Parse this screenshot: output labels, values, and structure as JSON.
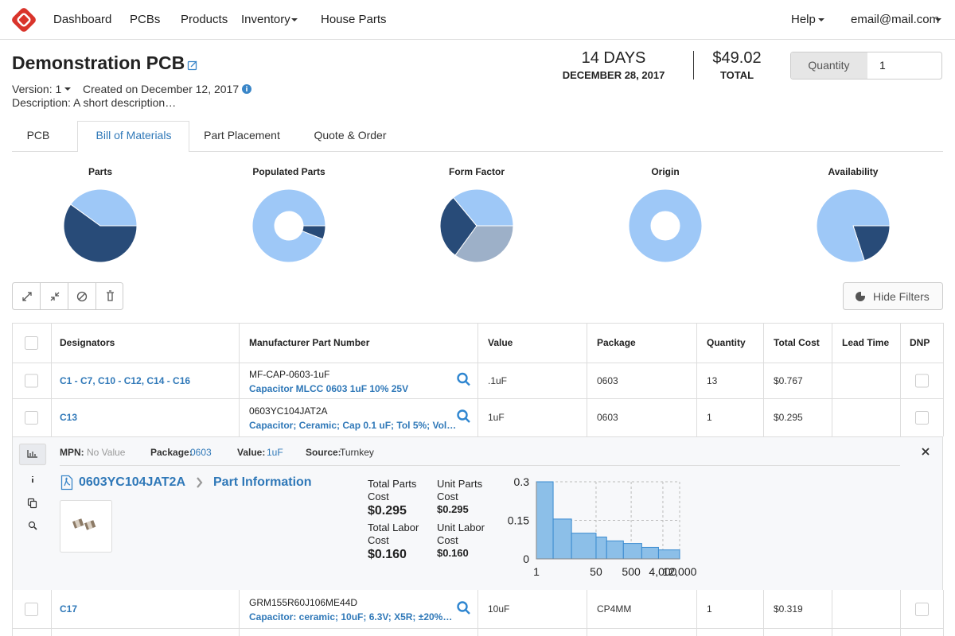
{
  "nav": {
    "items": [
      "Dashboard",
      "PCBs",
      "Products",
      "Inventory",
      "House Parts"
    ],
    "help": "Help",
    "account": "email@mail.com"
  },
  "header": {
    "title": "Demonstration PCB",
    "version": "Version: 1",
    "created": "Created on December 12, 2017",
    "description": "Description: A short description…",
    "lead_time": "14 DAYS",
    "ship_date": "DECEMBER 28, 2017",
    "total": "$49.02",
    "total_label": "TOTAL",
    "quantity_label": "Quantity",
    "quantity": "1"
  },
  "tabs": [
    "PCB",
    "Bill of Materials",
    "Part Placement",
    "Quote & Order"
  ],
  "active_tab": 1,
  "chart_data": [
    {
      "type": "pie",
      "title": "Parts",
      "values": [
        60,
        40
      ],
      "colors": [
        "#284b78",
        "#9ec8f7"
      ],
      "donut": false
    },
    {
      "type": "pie",
      "title": "Populated Parts",
      "values": [
        6,
        94
      ],
      "colors": [
        "#284b78",
        "#9ec8f7"
      ],
      "donut": true
    },
    {
      "type": "pie",
      "title": "Form Factor",
      "values": [
        35,
        29,
        36
      ],
      "colors": [
        "#9db0c8",
        "#284b78",
        "#9ec8f7"
      ],
      "donut": false
    },
    {
      "type": "pie",
      "title": "Origin",
      "values": [
        100
      ],
      "colors": [
        "#9ec8f7"
      ],
      "donut": true
    },
    {
      "type": "pie",
      "title": "Availability",
      "values": [
        20,
        80
      ],
      "colors": [
        "#284b78",
        "#9ec8f7"
      ],
      "donut": false
    },
    {
      "type": "area",
      "step": true,
      "x": [
        1,
        3,
        10,
        50,
        100,
        300,
        1000,
        3000
      ],
      "values": [
        0.3,
        0.155,
        0.1,
        0.085,
        0.07,
        0.06,
        0.045,
        0.035
      ],
      "xlim": [
        1,
        12000
      ],
      "ylim": [
        0,
        0.3
      ],
      "xscale": "log",
      "xticks": [
        1,
        50,
        500,
        {
          "value": 4000,
          "label": "4,000"
        },
        {
          "value": 12000,
          "label": "12,000"
        }
      ],
      "yticks": [
        0,
        0.15,
        0.3
      ],
      "grid": true,
      "color": "#8cbfe8",
      "line_color": "#3a8bd0"
    }
  ],
  "toolbar": {
    "hide_filters": "Hide Filters"
  },
  "table": {
    "columns": [
      "Designators",
      "Manufacturer Part Number",
      "Value",
      "Package",
      "Quantity",
      "Total Cost",
      "Lead Time",
      "DNP"
    ],
    "rows": [
      {
        "designators": "C1 - C7, C10 - C12, C14 - C16",
        "mpn": "MF-CAP-0603-1uF",
        "description": "Capacitor MLCC 0603 1uF 10% 25V",
        "value": ".1uF",
        "package": "0603",
        "quantity": "13",
        "total_cost": "$0.767"
      },
      {
        "designators": "C13",
        "mpn": "0603YC104JAT2A",
        "description": "Capacitor; Ceramic; Cap 0.1 uF; Tol 5%; Vol…",
        "value": "1uF",
        "package": "0603",
        "quantity": "1",
        "total_cost": "$0.295"
      },
      {
        "designators": "C17",
        "mpn": "GRM155R60J106ME44D",
        "description": "Capacitor: ceramic; 10uF; 6.3V; X5R; ±20%…",
        "value": "10uF",
        "package": "CP4MM",
        "quantity": "1",
        "total_cost": "$0.319"
      }
    ]
  },
  "detail": {
    "mpn_label": "MPN:",
    "mpn": "No Value",
    "package_label": "Package:",
    "package": "0603",
    "value_label": "Value:",
    "value": "1uF",
    "source_label": "Source:",
    "source": "Turnkey",
    "part": "0603YC104JAT2A",
    "part_info": "Part Information",
    "total_parts_cost_label": "Total Parts Cost",
    "total_parts_cost": "$0.295",
    "unit_parts_cost_label": "Unit Parts Cost",
    "unit_parts_cost": "$0.295",
    "total_labor_cost_label": "Total Labor Cost",
    "total_labor_cost": "$0.160",
    "unit_labor_cost_label": "Unit Labor Cost",
    "unit_labor_cost": "$0.160"
  }
}
